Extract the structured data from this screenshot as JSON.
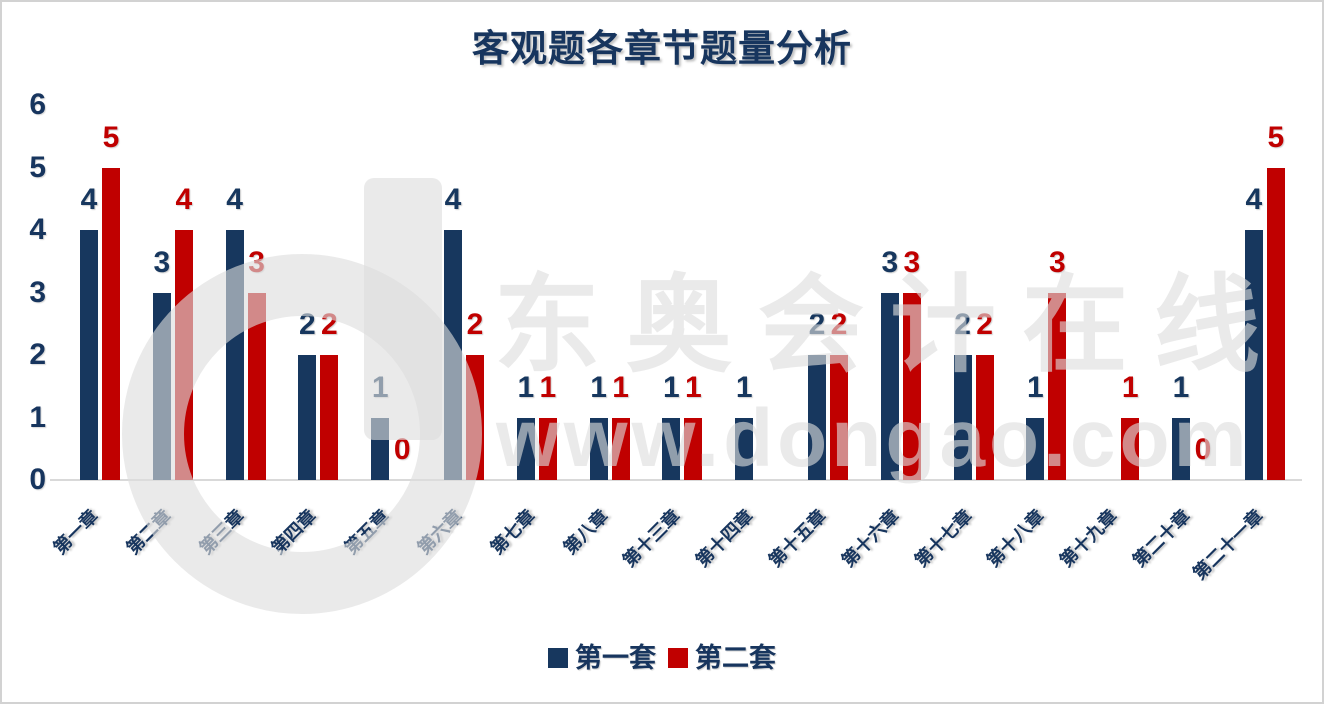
{
  "title": "客观题各章节题量分析",
  "watermark": {
    "logo": "dongao-d-logo",
    "line1": "东奥会计在线",
    "line2": "www.dongao.com",
    "color": "rgba(221,221,221,0.62)"
  },
  "colors": {
    "series1": "#17375E",
    "series2": "#C00000",
    "axis_line": "#D9D9D9",
    "text": "#17355E"
  },
  "legend": {
    "items": [
      {
        "label": "第一套",
        "color": "#17375E"
      },
      {
        "label": "第二套",
        "color": "#C00000"
      }
    ]
  },
  "chart_data": {
    "type": "bar",
    "title": "客观题各章节题量分析",
    "categories": [
      "第一章",
      "第二章",
      "第三章",
      "第四章",
      "第五章",
      "第六章",
      "第七章",
      "第八章",
      "第十三章",
      "第十四章",
      "第十五章",
      "第十六章",
      "第十七章",
      "第十八章",
      "第十九章",
      "第二十章",
      "第二十一章"
    ],
    "series": [
      {
        "name": "第一套",
        "color": "#17375E",
        "values": [
          4,
          3,
          4,
          2,
          1,
          4,
          1,
          1,
          1,
          1,
          2,
          3,
          2,
          1,
          0,
          1,
          4
        ],
        "labels": [
          "4",
          "3",
          "4",
          "2",
          "1",
          "4",
          "1",
          "1",
          "1",
          "1",
          "2",
          "3",
          "2",
          "1",
          "",
          "1",
          "4"
        ]
      },
      {
        "name": "第二套",
        "color": "#C00000",
        "values": [
          5,
          4,
          3,
          2,
          0,
          2,
          1,
          1,
          1,
          0,
          2,
          3,
          2,
          3,
          1,
          0,
          5
        ],
        "labels": [
          "5",
          "4",
          "3",
          "2",
          "0",
          "2",
          "1",
          "1",
          "1",
          "",
          "2",
          "3",
          "2",
          "3",
          "1",
          "0",
          "5"
        ]
      }
    ],
    "xlabel": "",
    "ylabel": "",
    "ylim": [
      0,
      6
    ],
    "yticks": [
      0,
      1,
      2,
      3,
      4,
      5,
      6
    ],
    "grid": false,
    "legend_position": "bottom"
  }
}
